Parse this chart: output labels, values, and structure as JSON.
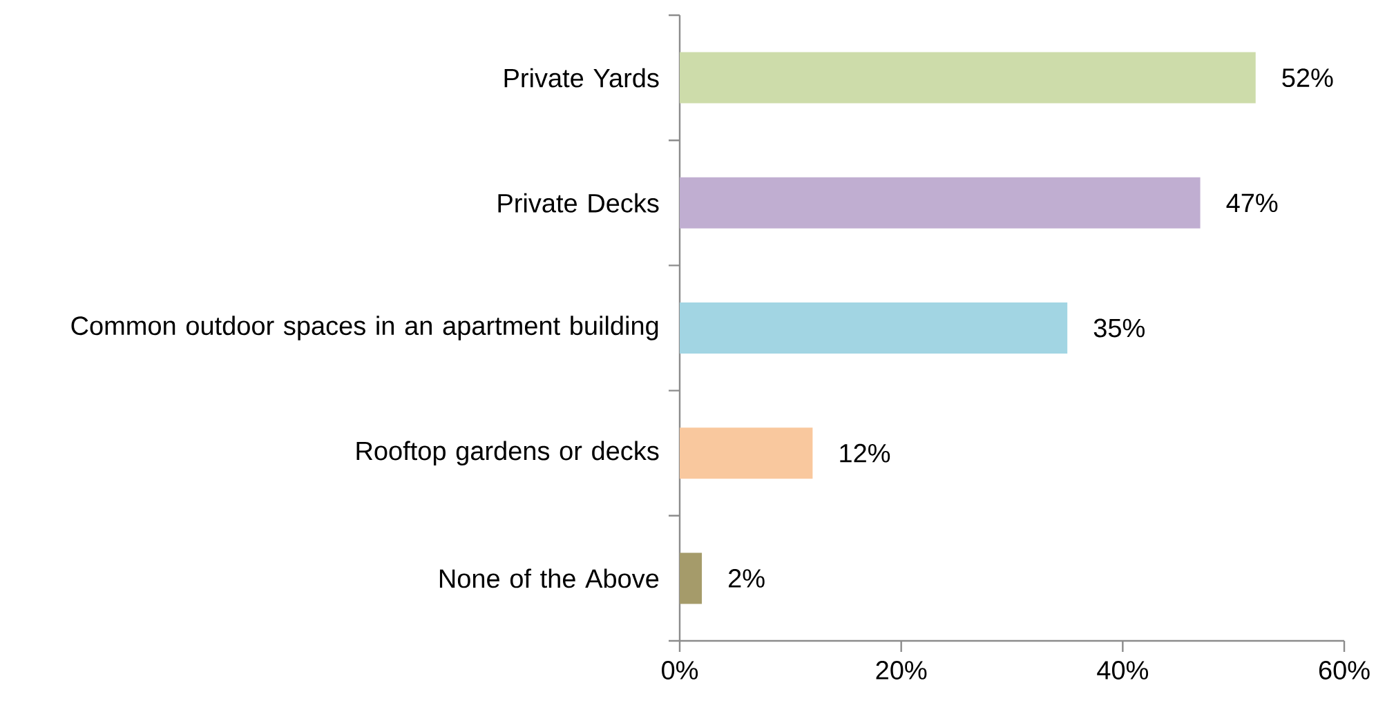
{
  "chart_data": {
    "type": "bar",
    "orientation": "horizontal",
    "categories": [
      "Private Yards",
      "Private Decks",
      "Common outdoor spaces in an apartment building",
      "Rooftop gardens or decks",
      "None of the Above"
    ],
    "values": [
      52,
      47,
      35,
      12,
      2
    ],
    "colors": [
      "#cddcaa",
      "#c0aed1",
      "#a2d5e3",
      "#f9c89e",
      "#a59b6a"
    ],
    "value_labels": [
      "52%",
      "47%",
      "35%",
      "12%",
      "2%"
    ],
    "xlim": [
      0,
      60
    ],
    "xticks": [
      {
        "value": 0,
        "label": "0%"
      },
      {
        "value": 20,
        "label": "20%"
      },
      {
        "value": 40,
        "label": "40%"
      },
      {
        "value": 60,
        "label": "60%"
      }
    ],
    "grid": false
  }
}
